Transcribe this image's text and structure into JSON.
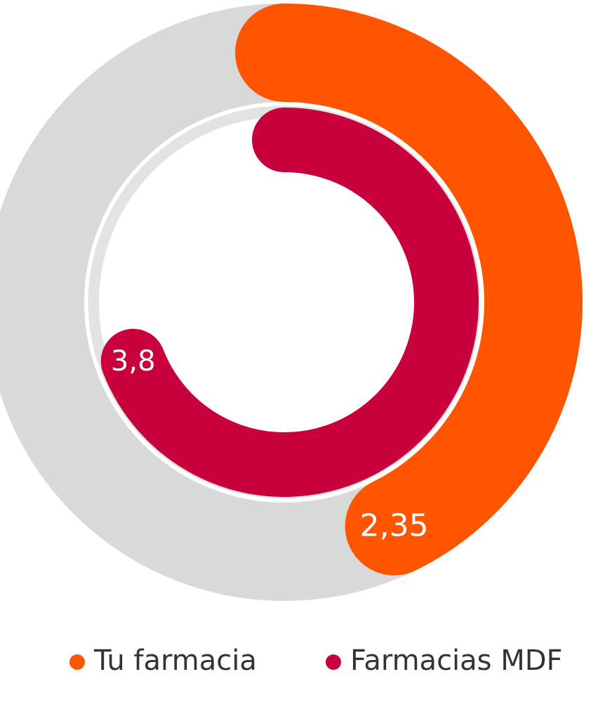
{
  "chart_data": {
    "type": "radial_bar",
    "categories": [
      "Tu farmacia",
      "Farmacias MDF"
    ],
    "values": [
      2.35,
      3.8
    ],
    "value_labels": [
      "2,35",
      "3,8"
    ],
    "colors": [
      "#ff5500",
      "#c8003c"
    ],
    "xlim": [
      0,
      5.5
    ]
  }
}
